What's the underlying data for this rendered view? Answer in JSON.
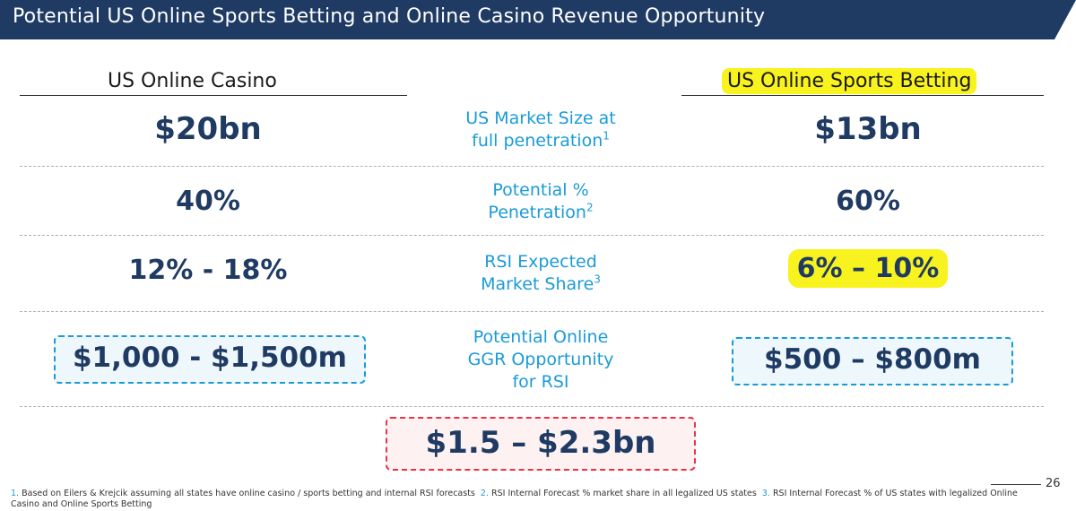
{
  "header": {
    "title": "Potential US Online Sports Betting and Online Casino Revenue Opportunity"
  },
  "columns": {
    "left_heading": "US Online Casino",
    "right_heading": "US Online Sports Betting"
  },
  "rows": [
    {
      "left": "$20bn",
      "label_line1": "US Market Size at",
      "label_line2": "full penetration",
      "label_sup": "1",
      "right": "$13bn"
    },
    {
      "left": "40%",
      "label_line1": "Potential %",
      "label_line2": "Penetration",
      "label_sup": "2",
      "right": "60%"
    },
    {
      "left": "12% - 18%",
      "label_line1": "RSI Expected",
      "label_line2": "Market Share",
      "label_sup": "3",
      "right": "6% – 10%"
    },
    {
      "left": "$1,000 - $1,500m",
      "label_line1": "Potential Online",
      "label_line2": "GGR Opportunity",
      "label_line3": "for RSI",
      "right": "$500 – $800m"
    }
  ],
  "total": {
    "value": "$1.5 – $2.3bn"
  },
  "page_number": "26",
  "footnotes": [
    {
      "num": "1.",
      "text": "Based on Eilers & Krejcik assuming all states have online casino / sports betting and internal RSI forecasts"
    },
    {
      "num": "2.",
      "text": "RSI Internal Forecast % market share in all legalized US states"
    },
    {
      "num": "3.",
      "text": "RSI Internal Forecast % of US states with legalized Online Casino and Online Sports Betting"
    }
  ],
  "colors": {
    "banner": "#1f3b63",
    "value_text": "#1f3b63",
    "label_text": "#1a9bd7",
    "highlight": "#f8f21e",
    "box_blue_border": "#1a9bd7",
    "box_red_border": "#e8334a"
  }
}
